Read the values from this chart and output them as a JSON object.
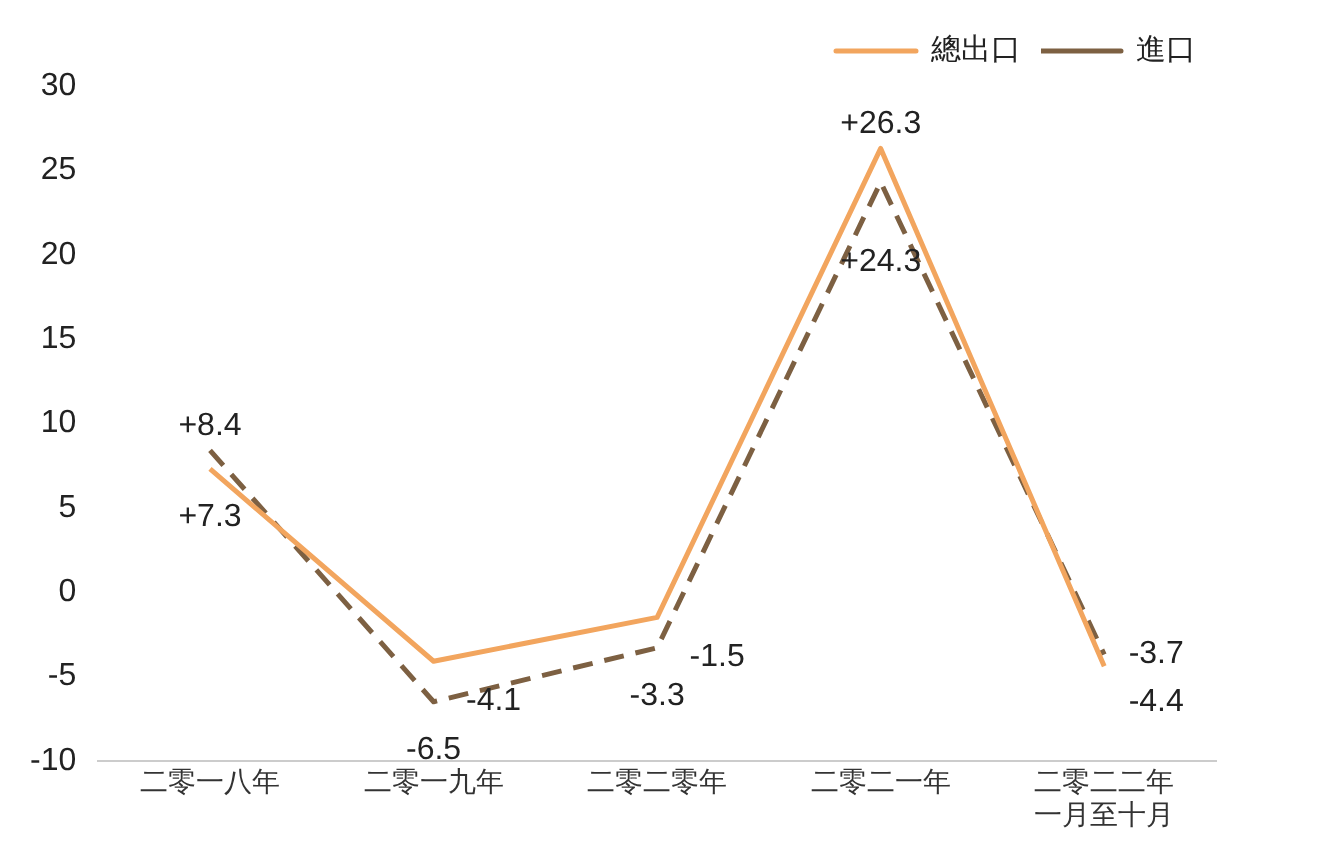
{
  "chart_data": {
    "type": "line",
    "categories": [
      "二零一八年",
      "二零一九年",
      "二零二零年",
      "二零二一年",
      "二零二二年一月至十月"
    ],
    "series": [
      {
        "name": "總出口",
        "color": "#f2a55e",
        "line_style": "solid",
        "values": [
          7.3,
          -4.1,
          -1.5,
          26.3,
          -4.4
        ],
        "value_labels": [
          "+7.3",
          "-4.1",
          "-1.5",
          "+26.3",
          "-4.4"
        ]
      },
      {
        "name": "進口",
        "color": "#7d6042",
        "line_style": "dashed",
        "values": [
          8.4,
          -6.5,
          -3.3,
          24.3,
          -3.7
        ],
        "value_labels": [
          "+8.4",
          "-6.5",
          "-3.3",
          "+24.3",
          "-3.7"
        ]
      }
    ],
    "ylim": [
      -10,
      30
    ],
    "yticks": [
      -10,
      -5,
      0,
      5,
      10,
      15,
      20,
      25,
      30
    ],
    "grid": false,
    "legend": "top right",
    "marker": "none"
  }
}
